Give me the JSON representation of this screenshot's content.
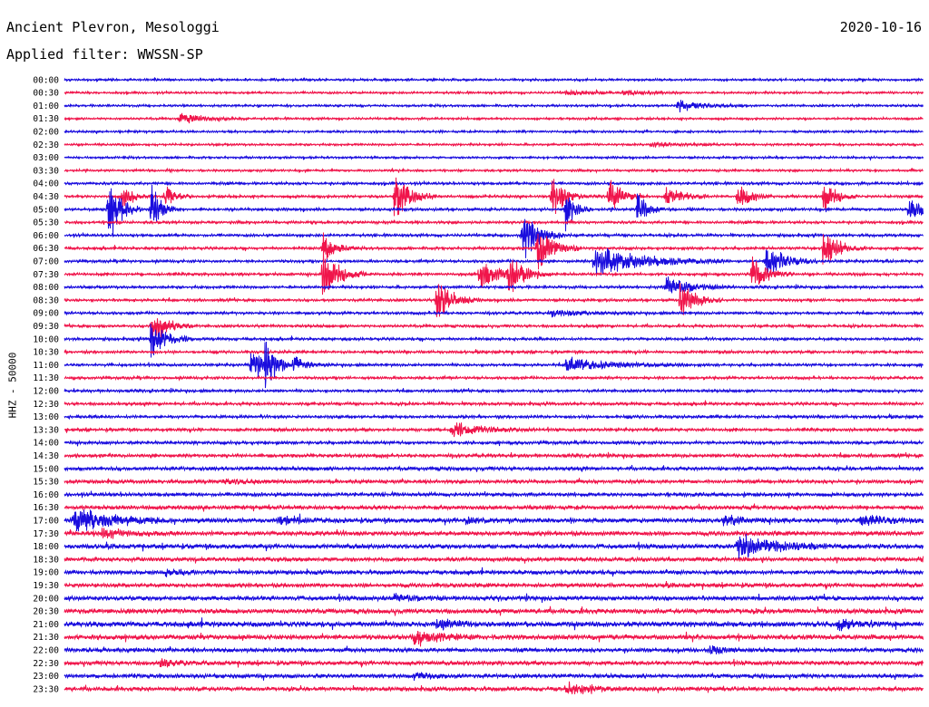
{
  "header": {
    "station": "Ancient Plevron, Mesologgi",
    "date": "2020-10-16",
    "filter": "Applied filter: WWSSN-SP"
  },
  "chart_data": {
    "type": "line",
    "title": "Ancient Plevron, Mesologgi",
    "subtitle": "Applied filter: WWSSN-SP",
    "ylabel": "HHZ - 50000",
    "xlabel": "",
    "colors": {
      "even_rows": "#1a0dde",
      "odd_rows": "#f0154b"
    },
    "categories": [
      "00:00",
      "00:30",
      "01:00",
      "01:30",
      "02:00",
      "02:30",
      "03:00",
      "03:30",
      "04:00",
      "04:30",
      "05:00",
      "05:30",
      "06:00",
      "06:30",
      "07:00",
      "07:30",
      "08:00",
      "08:30",
      "09:00",
      "09:30",
      "10:00",
      "10:30",
      "11:00",
      "11:30",
      "12:00",
      "12:30",
      "13:00",
      "13:30",
      "14:00",
      "14:30",
      "15:00",
      "15:30",
      "16:00",
      "16:30",
      "17:00",
      "17:30",
      "18:00",
      "18:30",
      "19:00",
      "19:30",
      "20:00",
      "20:30",
      "21:00",
      "21:30",
      "22:00",
      "22:30",
      "23:00",
      "23:30"
    ],
    "noise_level": [
      1,
      1,
      1,
      1,
      1,
      1,
      1,
      1,
      1.2,
      1.2,
      1.2,
      1.2,
      1.2,
      1.2,
      1.2,
      1.2,
      1.2,
      1.2,
      1.2,
      1.2,
      1.2,
      1.2,
      1.2,
      1.2,
      1.2,
      1.3,
      1.3,
      1.3,
      1.4,
      1.5,
      1.6,
      1.6,
      1.6,
      1.8,
      2.0,
      2.0,
      2.0,
      1.8,
      1.8,
      1.8,
      2.0,
      2.2,
      2.4,
      2.2,
      1.8,
      1.8,
      1.8,
      1.8
    ],
    "events": [
      {
        "row": 1,
        "minute": 17.5,
        "amplitude": 3,
        "duration": 0.8
      },
      {
        "row": 1,
        "minute": 19.5,
        "amplitude": 3,
        "duration": 0.8
      },
      {
        "row": 2,
        "minute": 21.4,
        "amplitude": 8,
        "duration": 0.8
      },
      {
        "row": 3,
        "minute": 4.0,
        "amplitude": 7,
        "duration": 0.8
      },
      {
        "row": 5,
        "minute": 20.5,
        "amplitude": 3,
        "duration": 0.8
      },
      {
        "row": 9,
        "minute": 2.0,
        "amplitude": 22,
        "duration": 0.3
      },
      {
        "row": 9,
        "minute": 3.5,
        "amplitude": 18,
        "duration": 0.3
      },
      {
        "row": 9,
        "minute": 11.5,
        "amplitude": 35,
        "duration": 0.5
      },
      {
        "row": 9,
        "minute": 17.0,
        "amplitude": 30,
        "duration": 0.4
      },
      {
        "row": 9,
        "minute": 19.0,
        "amplitude": 25,
        "duration": 0.4
      },
      {
        "row": 9,
        "minute": 21.0,
        "amplitude": 14,
        "duration": 0.5
      },
      {
        "row": 9,
        "minute": 23.5,
        "amplitude": 20,
        "duration": 0.4
      },
      {
        "row": 9,
        "minute": 26.5,
        "amplitude": 25,
        "duration": 0.4
      },
      {
        "row": 10,
        "minute": 1.5,
        "amplitude": 45,
        "duration": 0.4
      },
      {
        "row": 10,
        "minute": 3.0,
        "amplitude": 40,
        "duration": 0.3
      },
      {
        "row": 10,
        "minute": 17.5,
        "amplitude": 30,
        "duration": 0.3
      },
      {
        "row": 10,
        "minute": 20.0,
        "amplitude": 28,
        "duration": 0.3
      },
      {
        "row": 10,
        "minute": 29.5,
        "amplitude": 25,
        "duration": 0.3
      },
      {
        "row": 12,
        "minute": 16.0,
        "amplitude": 32,
        "duration": 0.5
      },
      {
        "row": 13,
        "minute": 9.0,
        "amplitude": 22,
        "duration": 0.4
      },
      {
        "row": 13,
        "minute": 16.5,
        "amplitude": 35,
        "duration": 0.5
      },
      {
        "row": 13,
        "minute": 26.5,
        "amplitude": 28,
        "duration": 0.5
      },
      {
        "row": 14,
        "minute": 18.5,
        "amplitude": 20,
        "duration": 1.6
      },
      {
        "row": 14,
        "minute": 24.5,
        "amplitude": 22,
        "duration": 0.6
      },
      {
        "row": 15,
        "minute": 9.0,
        "amplitude": 38,
        "duration": 0.5
      },
      {
        "row": 15,
        "minute": 14.5,
        "amplitude": 22,
        "duration": 0.6
      },
      {
        "row": 15,
        "minute": 15.5,
        "amplitude": 25,
        "duration": 0.5
      },
      {
        "row": 15,
        "minute": 24.0,
        "amplitude": 22,
        "duration": 0.5
      },
      {
        "row": 16,
        "minute": 21.0,
        "amplitude": 14,
        "duration": 0.8
      },
      {
        "row": 17,
        "minute": 13.0,
        "amplitude": 30,
        "duration": 0.5
      },
      {
        "row": 17,
        "minute": 21.5,
        "amplitude": 25,
        "duration": 0.5
      },
      {
        "row": 18,
        "minute": 17.0,
        "amplitude": 4,
        "duration": 1.0
      },
      {
        "row": 19,
        "minute": 3.0,
        "amplitude": 25,
        "duration": 0.5
      },
      {
        "row": 20,
        "minute": 3.0,
        "amplitude": 25,
        "duration": 0.5
      },
      {
        "row": 22,
        "minute": 6.5,
        "amplitude": 25,
        "duration": 0.4
      },
      {
        "row": 22,
        "minute": 7.0,
        "amplitude": 28,
        "duration": 0.4
      },
      {
        "row": 22,
        "minute": 8.0,
        "amplitude": 12,
        "duration": 0.4
      },
      {
        "row": 22,
        "minute": 17.5,
        "amplitude": 10,
        "duration": 1.4
      },
      {
        "row": 27,
        "minute": 13.5,
        "amplitude": 10,
        "duration": 1.0
      },
      {
        "row": 31,
        "minute": 5.5,
        "amplitude": 3,
        "duration": 1.2
      },
      {
        "row": 34,
        "minute": 0.3,
        "amplitude": 18,
        "duration": 1.2
      },
      {
        "row": 34,
        "minute": 7.5,
        "amplitude": 6,
        "duration": 0.8
      },
      {
        "row": 34,
        "minute": 14.0,
        "amplitude": 5,
        "duration": 0.6
      },
      {
        "row": 34,
        "minute": 23.0,
        "amplitude": 6,
        "duration": 0.8
      },
      {
        "row": 34,
        "minute": 27.8,
        "amplitude": 7,
        "duration": 0.8
      },
      {
        "row": 35,
        "minute": 1.3,
        "amplitude": 6,
        "duration": 0.8
      },
      {
        "row": 36,
        "minute": 23.5,
        "amplitude": 16,
        "duration": 1.3
      },
      {
        "row": 38,
        "minute": 3.5,
        "amplitude": 5,
        "duration": 0.6
      },
      {
        "row": 40,
        "minute": 11.5,
        "amplitude": 5,
        "duration": 0.6
      },
      {
        "row": 42,
        "minute": 13.0,
        "amplitude": 6,
        "duration": 0.6
      },
      {
        "row": 42,
        "minute": 27.0,
        "amplitude": 6,
        "duration": 0.8
      },
      {
        "row": 43,
        "minute": 12.2,
        "amplitude": 10,
        "duration": 0.8
      },
      {
        "row": 44,
        "minute": 22.5,
        "amplitude": 6,
        "duration": 0.5
      },
      {
        "row": 45,
        "minute": 3.3,
        "amplitude": 6,
        "duration": 0.6
      },
      {
        "row": 46,
        "minute": 12.2,
        "amplitude": 5,
        "duration": 0.6
      },
      {
        "row": 47,
        "minute": 17.5,
        "amplitude": 9,
        "duration": 0.8
      }
    ]
  }
}
